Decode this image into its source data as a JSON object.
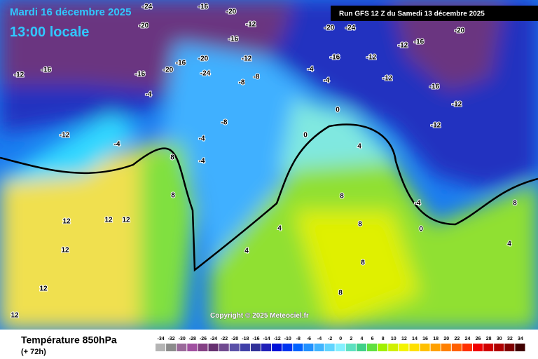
{
  "header": {
    "date": "Mardi 16 décembre 2025",
    "time": "13:00 locale",
    "run": "Run GFS 12 Z du Samedi 13 décembre 2025"
  },
  "copyright": "Copyright © 2025 Meteociel.fr",
  "footer": {
    "title": "Température 850hPa",
    "lead": "(+ 72h)"
  },
  "scale": {
    "values": [
      -34,
      -32,
      -30,
      -28,
      -26,
      -24,
      -22,
      -20,
      -18,
      -16,
      -14,
      -12,
      -10,
      -8,
      -6,
      -4,
      -2,
      0,
      2,
      4,
      6,
      8,
      10,
      12,
      14,
      16,
      18,
      20,
      22,
      24,
      26,
      28,
      30,
      32,
      34
    ],
    "colors": [
      "#b4b4b4",
      "#8c8c8c",
      "#9a6a9a",
      "#a050a0",
      "#844084",
      "#663070",
      "#704a90",
      "#5a50a8",
      "#4040a8",
      "#303098",
      "#2020b8",
      "#0010d8",
      "#0034f0",
      "#0062ff",
      "#2090ff",
      "#40b4ff",
      "#60d4ff",
      "#84f0ff",
      "#5ee0c0",
      "#40d088",
      "#60e040",
      "#a0f000",
      "#d0f000",
      "#f4f400",
      "#ffe000",
      "#ffc000",
      "#ffa000",
      "#ff8000",
      "#ff6000",
      "#ff3000",
      "#f00000",
      "#d00000",
      "#b00000",
      "#800000",
      "#400000"
    ]
  },
  "map_labels": [
    -20,
    -24,
    -16,
    -20,
    -12,
    -16,
    -12,
    -20,
    -24,
    -16,
    -20,
    -16,
    -12,
    -16,
    -4,
    -8,
    -8,
    -4,
    -4,
    -12,
    -16,
    -12,
    -20,
    -24,
    -16,
    -20,
    -12,
    -16,
    -12,
    -12,
    -8,
    -4,
    -4,
    -12,
    -4,
    0,
    0,
    4,
    8,
    8,
    12,
    12,
    12,
    8,
    8,
    4,
    4,
    8,
    12,
    12,
    8,
    4,
    0,
    -4,
    8,
    12
  ]
}
